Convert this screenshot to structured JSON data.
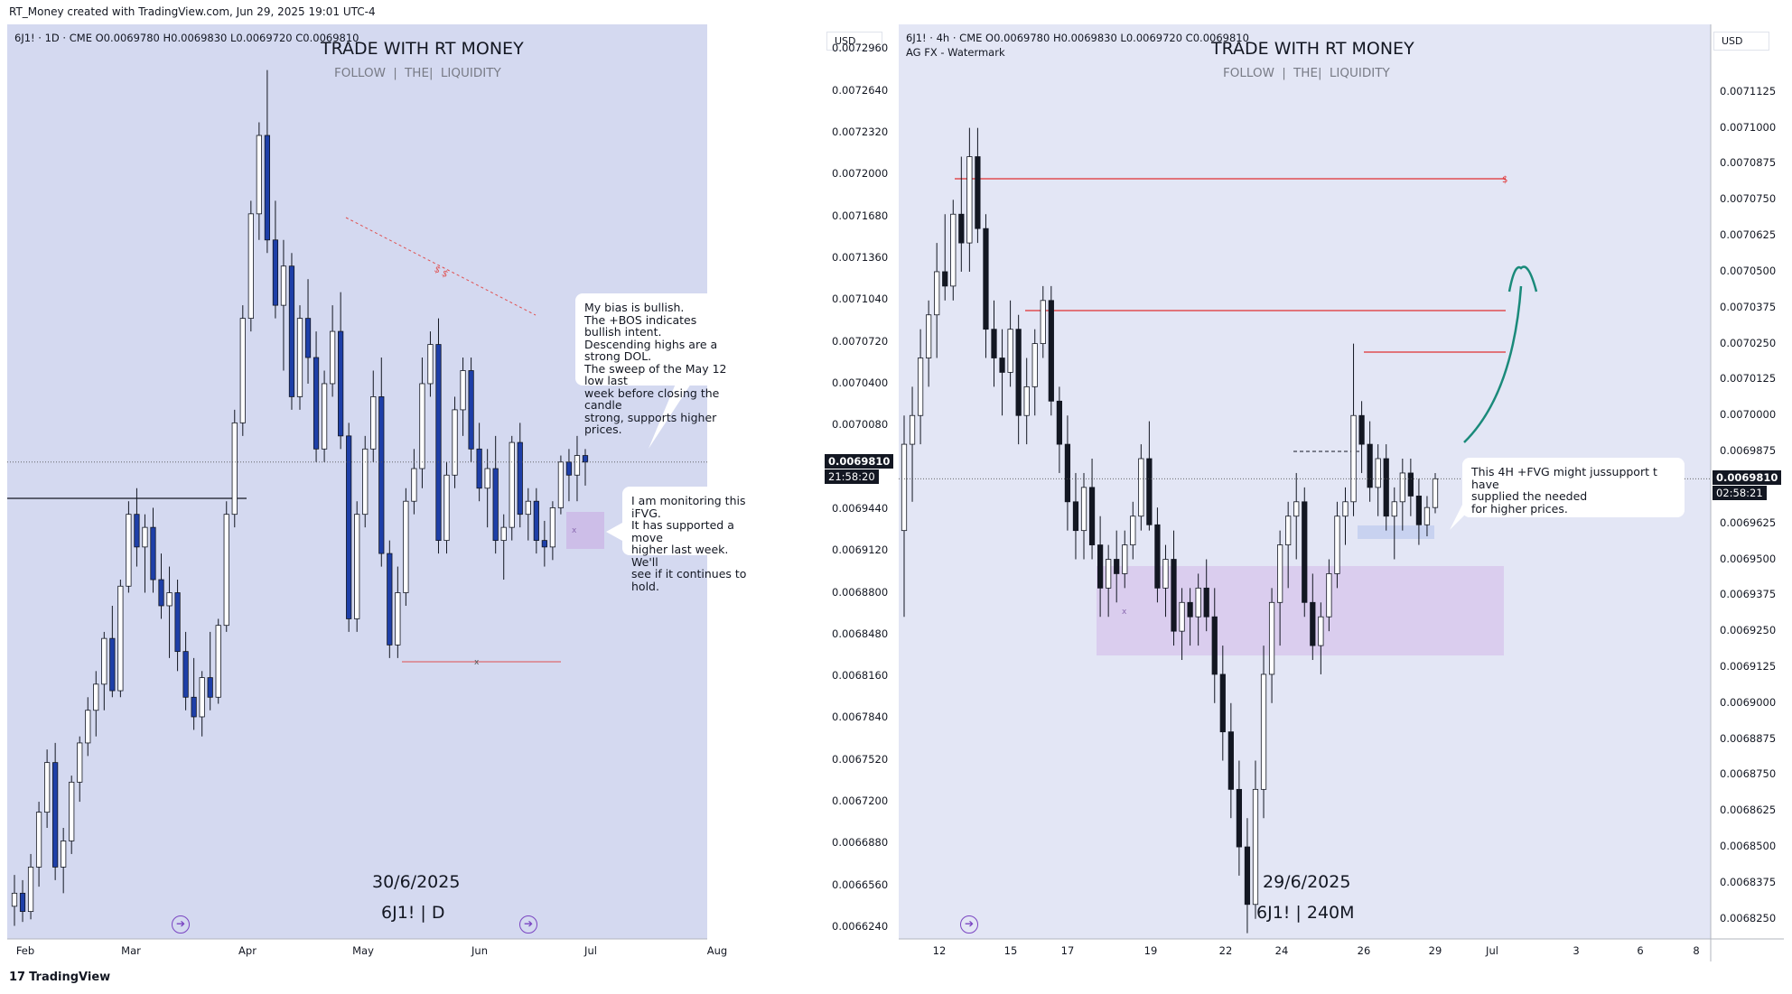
{
  "header": {
    "text": "RT_Money created with TradingView.com, Jun 29, 2025 19:01 UTC-4"
  },
  "footer": {
    "logo_text": "TradingView"
  },
  "left": {
    "symbol_line": "6J1! · 1D · CME  O0.0069780 H0.0069830 L0.0069720 C0.0069810",
    "watermark_title": "TRADE WITH RT MONEY",
    "watermark_sub": "FOLLOW  |  THE|  LIQUIDITY",
    "date": "30/6/2025",
    "timeframe": "6J1!  |  D",
    "currency": "USD",
    "last_price": "0.0069810",
    "countdown": "21:58:20",
    "price_ticks": [
      "0.0072960",
      "0.0072640",
      "0.0072320",
      "0.0072000",
      "0.0071680",
      "0.0071360",
      "0.0071040",
      "0.0070720",
      "0.0070400",
      "0.0070080",
      "0.0069440",
      "0.0069120",
      "0.0068800",
      "0.0068480",
      "0.0068160",
      "0.0067840",
      "0.0067520",
      "0.0067200",
      "0.0066880",
      "0.0066560",
      "0.0066240"
    ],
    "x_ticks": [
      "Feb",
      "Mar",
      "Apr",
      "May",
      "Jun",
      "Jul",
      "Aug"
    ],
    "callout_bias": "My bias is bullish.\nThe +BOS indicates bullish intent.\nDescending highs are a strong DOL.\nThe sweep of the May 12 low last\nweek before closing the candle\nstrong, supports higher prices.",
    "callout_ifvg": "I am monitoring this iFVG.\nIt has supported a move\nhigher last week.  We'll\nsee if it continues to hold.",
    "dol_label": "$ $",
    "x_mark": "x",
    "box_mark": "x",
    "colors": {
      "bg": "#d4d9f0",
      "bear": "#1e3fa8",
      "bull": "#ffffff",
      "fvg": "#cbb8e6",
      "dol_line": "#e05050"
    }
  },
  "right": {
    "symbol_line": "6J1! · 4h · CME  O0.0069780 H0.0069830 L0.0069720 C0.0069810",
    "indicator": "AG FX - Watermark",
    "watermark_title": "TRADE WITH RT MONEY",
    "watermark_sub": "FOLLOW  |  THE|  LIQUIDITY",
    "date": "29/6/2025",
    "timeframe": "6J1!  |  240M",
    "currency": "USD",
    "last_price": "0.0069810",
    "countdown": "02:58:21",
    "price_ticks": [
      "0.0071125",
      "0.0071000",
      "0.0070875",
      "0.0070750",
      "0.0070625",
      "0.0070500",
      "0.0070375",
      "0.0070250",
      "0.0070125",
      "0.0070000",
      "0.0069875",
      "0.0069625",
      "0.0069500",
      "0.0069375",
      "0.0069250",
      "0.0069125",
      "0.0069000",
      "0.0068875",
      "0.0068750",
      "0.0068625",
      "0.0068500",
      "0.0068375",
      "0.0068250"
    ],
    "x_ticks": [
      "12",
      "15",
      "17",
      "19",
      "22",
      "24",
      "26",
      "29",
      "Jul",
      "3",
      "6",
      "8"
    ],
    "callout": "This 4H +FVG might jussupport t have\nsupplied the needed\nfor higher prices.",
    "dollar_label": "$",
    "box_mark": "x",
    "colors": {
      "bg": "#e3e6f5",
      "bear": "#131722",
      "bull": "#ffffff",
      "fvg": "#d8c8ec",
      "liq_line": "#e03030",
      "arrow": "#1a8a7a"
    }
  },
  "chart_data": [
    {
      "type": "candlestick",
      "title": "6J1! · 1D · CME",
      "ylabel": "USD",
      "ylim": [
        0.006615,
        0.007315
      ],
      "x_ticks": [
        "Feb",
        "Mar",
        "Apr",
        "May",
        "Jun",
        "Jul",
        "Aug"
      ],
      "candles": [
        [
          0.00664,
          0.006664,
          0.006625,
          0.00665
        ],
        [
          0.00665,
          0.00666,
          0.006628,
          0.006636
        ],
        [
          0.006636,
          0.00668,
          0.00663,
          0.00667
        ],
        [
          0.00667,
          0.00672,
          0.006655,
          0.006712
        ],
        [
          0.006712,
          0.00676,
          0.0067,
          0.00675
        ],
        [
          0.00675,
          0.006765,
          0.00666,
          0.00667
        ],
        [
          0.00667,
          0.0067,
          0.00665,
          0.00669
        ],
        [
          0.00669,
          0.00674,
          0.00668,
          0.006735
        ],
        [
          0.006735,
          0.00677,
          0.00672,
          0.006765
        ],
        [
          0.006765,
          0.0068,
          0.006755,
          0.00679
        ],
        [
          0.00679,
          0.00682,
          0.00677,
          0.00681
        ],
        [
          0.00681,
          0.00685,
          0.00679,
          0.006845
        ],
        [
          0.006845,
          0.00687,
          0.0068,
          0.006805
        ],
        [
          0.006805,
          0.00689,
          0.0068,
          0.006885
        ],
        [
          0.006885,
          0.00695,
          0.00688,
          0.00694
        ],
        [
          0.00694,
          0.00696,
          0.0069,
          0.006915
        ],
        [
          0.006915,
          0.00694,
          0.00688,
          0.00693
        ],
        [
          0.00693,
          0.006945,
          0.00688,
          0.00689
        ],
        [
          0.00689,
          0.00691,
          0.00686,
          0.00687
        ],
        [
          0.00687,
          0.0069,
          0.00683,
          0.00688
        ],
        [
          0.00688,
          0.00689,
          0.00682,
          0.006835
        ],
        [
          0.006835,
          0.00685,
          0.00679,
          0.0068
        ],
        [
          0.0068,
          0.00683,
          0.006775,
          0.006785
        ],
        [
          0.006785,
          0.00682,
          0.00677,
          0.006815
        ],
        [
          0.006815,
          0.00685,
          0.00679,
          0.0068
        ],
        [
          0.0068,
          0.00686,
          0.006795,
          0.006855
        ],
        [
          0.006855,
          0.00695,
          0.00685,
          0.00694
        ],
        [
          0.00694,
          0.00702,
          0.00693,
          0.00701
        ],
        [
          0.00701,
          0.0071,
          0.007,
          0.00709
        ],
        [
          0.00709,
          0.00718,
          0.00708,
          0.00717
        ],
        [
          0.00717,
          0.00724,
          0.00715,
          0.00723
        ],
        [
          0.00723,
          0.00728,
          0.00714,
          0.00715
        ],
        [
          0.00715,
          0.00718,
          0.00709,
          0.0071
        ],
        [
          0.0071,
          0.00715,
          0.00705,
          0.00713
        ],
        [
          0.00713,
          0.00714,
          0.00702,
          0.00703
        ],
        [
          0.00703,
          0.0071,
          0.00702,
          0.00709
        ],
        [
          0.00709,
          0.00712,
          0.00704,
          0.00706
        ],
        [
          0.00706,
          0.00708,
          0.00698,
          0.00699
        ],
        [
          0.00699,
          0.00705,
          0.00698,
          0.00704
        ],
        [
          0.00704,
          0.0071,
          0.00703,
          0.00708
        ],
        [
          0.00708,
          0.00711,
          0.00699,
          0.007
        ],
        [
          0.007,
          0.00701,
          0.00685,
          0.00686
        ],
        [
          0.00686,
          0.00695,
          0.00685,
          0.00694
        ],
        [
          0.00694,
          0.007,
          0.00693,
          0.00699
        ],
        [
          0.00699,
          0.00705,
          0.00698,
          0.00703
        ],
        [
          0.00703,
          0.00706,
          0.0069,
          0.00691
        ],
        [
          0.00691,
          0.00692,
          0.00683,
          0.00684
        ],
        [
          0.00684,
          0.0069,
          0.00683,
          0.00688
        ],
        [
          0.00688,
          0.00696,
          0.00687,
          0.00695
        ],
        [
          0.00695,
          0.00699,
          0.00694,
          0.006975
        ],
        [
          0.006975,
          0.00706,
          0.00696,
          0.00704
        ],
        [
          0.00704,
          0.00708,
          0.00703,
          0.00707
        ],
        [
          0.00707,
          0.00709,
          0.00691,
          0.00692
        ],
        [
          0.00692,
          0.00698,
          0.00691,
          0.00697
        ],
        [
          0.00697,
          0.00703,
          0.00696,
          0.00702
        ],
        [
          0.00702,
          0.00706,
          0.007,
          0.00705
        ],
        [
          0.00705,
          0.00706,
          0.00698,
          0.00699
        ],
        [
          0.00699,
          0.00701,
          0.00695,
          0.00696
        ],
        [
          0.00696,
          0.00699,
          0.00693,
          0.006975
        ],
        [
          0.006975,
          0.007,
          0.00691,
          0.00692
        ],
        [
          0.00692,
          0.00694,
          0.00689,
          0.00693
        ],
        [
          0.00693,
          0.007,
          0.00692,
          0.006995
        ],
        [
          0.006995,
          0.00701,
          0.00693,
          0.00694
        ],
        [
          0.00694,
          0.00696,
          0.00692,
          0.00695
        ],
        [
          0.00695,
          0.00696,
          0.00691,
          0.00692
        ],
        [
          0.00692,
          0.006935,
          0.0069,
          0.006915
        ],
        [
          0.006915,
          0.00695,
          0.006905,
          0.006945
        ],
        [
          0.006945,
          0.006985,
          0.00694,
          0.00698
        ],
        [
          0.00698,
          0.00699,
          0.00695,
          0.00697
        ],
        [
          0.00697,
          0.007,
          0.00695,
          0.006985
        ],
        [
          0.006985,
          0.00699,
          0.006962,
          0.00698
        ]
      ]
    },
    {
      "type": "candlestick",
      "title": "6J1! · 4h · CME",
      "ylabel": "USD",
      "ylim": [
        0.006818,
        0.007136
      ],
      "x_ticks": [
        "12",
        "15",
        "17",
        "19",
        "22",
        "24",
        "26",
        "29",
        "Jul",
        "3",
        "6",
        "8"
      ],
      "candles": [
        [
          0.00696,
          0.007,
          0.00693,
          0.00699
        ],
        [
          0.00699,
          0.00701,
          0.00697,
          0.007
        ],
        [
          0.007,
          0.00703,
          0.00699,
          0.00702
        ],
        [
          0.00702,
          0.00704,
          0.00701,
          0.007035
        ],
        [
          0.007035,
          0.00706,
          0.00702,
          0.00705
        ],
        [
          0.00705,
          0.00707,
          0.00704,
          0.007045
        ],
        [
          0.007045,
          0.007075,
          0.00704,
          0.00707
        ],
        [
          0.00707,
          0.00709,
          0.00705,
          0.00706
        ],
        [
          0.00706,
          0.0071,
          0.00705,
          0.00709
        ],
        [
          0.00709,
          0.0071,
          0.00706,
          0.007065
        ],
        [
          0.007065,
          0.00707,
          0.00702,
          0.00703
        ],
        [
          0.00703,
          0.00704,
          0.00701,
          0.00702
        ],
        [
          0.00702,
          0.00703,
          0.007,
          0.007015
        ],
        [
          0.007015,
          0.00704,
          0.00701,
          0.00703
        ],
        [
          0.00703,
          0.007035,
          0.00699,
          0.007
        ],
        [
          0.007,
          0.00702,
          0.00699,
          0.00701
        ],
        [
          0.00701,
          0.00703,
          0.007,
          0.007025
        ],
        [
          0.007025,
          0.007045,
          0.00702,
          0.00704
        ],
        [
          0.00704,
          0.007045,
          0.007,
          0.007005
        ],
        [
          0.007005,
          0.00701,
          0.00698,
          0.00699
        ],
        [
          0.00699,
          0.007,
          0.00696,
          0.00697
        ],
        [
          0.00697,
          0.00698,
          0.00695,
          0.00696
        ],
        [
          0.00696,
          0.00698,
          0.00695,
          0.006975
        ],
        [
          0.006975,
          0.006985,
          0.00695,
          0.006955
        ],
        [
          0.006955,
          0.006965,
          0.00693,
          0.00694
        ],
        [
          0.00694,
          0.006955,
          0.00693,
          0.00695
        ],
        [
          0.00695,
          0.00696,
          0.006935,
          0.006945
        ],
        [
          0.006945,
          0.00696,
          0.00694,
          0.006955
        ],
        [
          0.006955,
          0.00697,
          0.00695,
          0.006965
        ],
        [
          0.006965,
          0.00699,
          0.00696,
          0.006985
        ],
        [
          0.006985,
          0.006998,
          0.00696,
          0.006962
        ],
        [
          0.006962,
          0.006968,
          0.006935,
          0.00694
        ],
        [
          0.00694,
          0.006955,
          0.00693,
          0.00695
        ],
        [
          0.00695,
          0.00696,
          0.00692,
          0.006925
        ],
        [
          0.006925,
          0.00694,
          0.006915,
          0.006935
        ],
        [
          0.006935,
          0.00694,
          0.00692,
          0.00693
        ],
        [
          0.00693,
          0.006945,
          0.00692,
          0.00694
        ],
        [
          0.00694,
          0.00695,
          0.006925,
          0.00693
        ],
        [
          0.00693,
          0.00694,
          0.0069,
          0.00691
        ],
        [
          0.00691,
          0.00692,
          0.00688,
          0.00689
        ],
        [
          0.00689,
          0.0069,
          0.00686,
          0.00687
        ],
        [
          0.00687,
          0.00688,
          0.00684,
          0.00685
        ],
        [
          0.00685,
          0.00686,
          0.00682,
          0.00683
        ],
        [
          0.00683,
          0.00688,
          0.006825,
          0.00687
        ],
        [
          0.00687,
          0.00692,
          0.00686,
          0.00691
        ],
        [
          0.00691,
          0.00694,
          0.0069,
          0.006935
        ],
        [
          0.006935,
          0.00696,
          0.00692,
          0.006955
        ],
        [
          0.006955,
          0.00697,
          0.00694,
          0.006965
        ],
        [
          0.006965,
          0.00698,
          0.00695,
          0.00697
        ],
        [
          0.00697,
          0.006975,
          0.00693,
          0.006935
        ],
        [
          0.006935,
          0.006945,
          0.006915,
          0.00692
        ],
        [
          0.00692,
          0.006935,
          0.00691,
          0.00693
        ],
        [
          0.00693,
          0.00695,
          0.006925,
          0.006945
        ],
        [
          0.006945,
          0.00697,
          0.00694,
          0.006965
        ],
        [
          0.006965,
          0.006975,
          0.006955,
          0.00697
        ],
        [
          0.00697,
          0.007025,
          0.006965,
          0.007
        ],
        [
          0.007,
          0.007005,
          0.00698,
          0.00699
        ],
        [
          0.00699,
          0.006998,
          0.00697,
          0.006975
        ],
        [
          0.006975,
          0.00699,
          0.006965,
          0.006985
        ],
        [
          0.006985,
          0.00699,
          0.00696,
          0.006965
        ],
        [
          0.006965,
          0.006975,
          0.00695,
          0.00697
        ],
        [
          0.00697,
          0.006985,
          0.00696,
          0.00698
        ],
        [
          0.00698,
          0.006985,
          0.006965,
          0.006972
        ],
        [
          0.006972,
          0.006978,
          0.006955,
          0.006962
        ],
        [
          0.006962,
          0.006972,
          0.006958,
          0.006968
        ],
        [
          0.006968,
          0.00698,
          0.006966,
          0.006978
        ]
      ]
    }
  ]
}
